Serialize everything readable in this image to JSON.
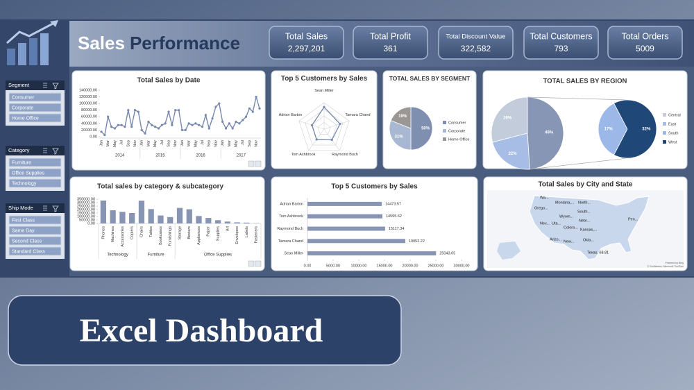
{
  "header": {
    "title_start": "Sales",
    "title_end": "Performance"
  },
  "kpis": [
    {
      "label": "Total Sales",
      "value": "2,297,201"
    },
    {
      "label": "Total Profit",
      "value": "361"
    },
    {
      "label": "Total Discount Value",
      "value": "322,582"
    },
    {
      "label": "Total Customers",
      "value": "793"
    },
    {
      "label": "Total Orders",
      "value": "5009"
    }
  ],
  "slicers": [
    {
      "title": "Segment",
      "items": [
        "Consumer",
        "Corporate",
        "Home Office"
      ]
    },
    {
      "title": "Category",
      "items": [
        "Furniture",
        "Office Supplies",
        "Technology"
      ]
    },
    {
      "title": "Ship Mode",
      "items": [
        "First Class",
        "Same Day",
        "Second Class",
        "Standard Class"
      ]
    }
  ],
  "chart_data": [
    {
      "type": "line",
      "title": "Total Sales by Date",
      "categories": [
        "Jan",
        null,
        "Mar",
        null,
        "May",
        null,
        "Jul",
        null,
        "Sep",
        null,
        "Nov",
        null,
        "Jan",
        null,
        "Mar",
        null,
        "May",
        null,
        "Jul",
        null,
        "Sep",
        null,
        "Nov",
        null,
        "Jan",
        null,
        "Mar",
        null,
        "May",
        null,
        "Jul",
        null,
        "Sep",
        null,
        "Nov",
        null,
        "Jan",
        null,
        "Mar",
        null,
        "May",
        null,
        "Jul",
        null,
        "Sep",
        null,
        "Nov",
        null
      ],
      "groups": [
        "2014",
        "2015",
        "2016",
        "2017"
      ],
      "values": [
        15000,
        5000,
        60000,
        30000,
        25000,
        35000,
        35000,
        30000,
        80000,
        30000,
        80000,
        75000,
        20000,
        10000,
        45000,
        35000,
        30000,
        25000,
        35000,
        40000,
        75000,
        35000,
        80000,
        80000,
        20000,
        20000,
        40000,
        35000,
        40000,
        35000,
        30000,
        65000,
        25000,
        55000,
        90000,
        100000,
        45000,
        25000,
        40000,
        25000,
        45000,
        40000,
        50000,
        60000,
        85000,
        75000,
        120000,
        85000
      ],
      "color": "#7688ad",
      "ylim": [
        0,
        140000
      ],
      "yticks": [
        {
          "value": 0,
          "label": "0.00"
        },
        {
          "value": 20000,
          "label": "20000.00"
        },
        {
          "value": 40000,
          "label": "40000.00"
        },
        {
          "value": 60000,
          "label": "60000.00"
        },
        {
          "value": 80000,
          "label": "80000.00"
        },
        {
          "value": 100000,
          "label": "100000.00"
        },
        {
          "value": 120000,
          "label": "120000.00"
        },
        {
          "value": 140000,
          "label": "140000.00"
        }
      ]
    },
    {
      "type": "radar",
      "title": "Top 5 Customers by Sales",
      "categories": [
        "Sean Miller",
        "Tamara Chand",
        "Raymond Buch",
        "Tom Ashbrook",
        "Adrian Barton"
      ],
      "values": [
        25043.05,
        19052.22,
        15117.34,
        14595.62,
        14473.57
      ],
      "rlim": [
        0,
        30000
      ],
      "color": "#7688ad"
    },
    {
      "type": "pie",
      "title": "TOTAL SALES BY SEGMENT",
      "categories": [
        "Consumer",
        "Corporate",
        "Home Office"
      ],
      "values": [
        50,
        31,
        19
      ],
      "value_labels": [
        "50%",
        "31%",
        "19%"
      ],
      "colors": [
        "#7f8fb0",
        "#a9b8d2",
        "#9a9794"
      ],
      "legend": "right"
    },
    {
      "type": "pie_of_pie",
      "title": "TOTAL SALES BY REGION",
      "categories": [
        "Central",
        "East",
        "South",
        "West"
      ],
      "values": [
        29,
        22,
        17,
        32
      ],
      "value_labels": [
        "29%",
        "22%",
        "17%",
        "32%"
      ],
      "other": {
        "value": 49,
        "label": "49%"
      },
      "colors": [
        "#c3ccdb",
        "#a8bde6",
        "#9cb8e8",
        "#1f4778"
      ],
      "other_color": "#8796b4",
      "legend": "right"
    },
    {
      "type": "grouped_bar",
      "title": "Total sales by category & subcategory",
      "groups": [
        {
          "name": "Technology",
          "categories": [
            "Phones",
            "Machines",
            "Accessories",
            "Copiers"
          ],
          "values": [
            330000,
            190000,
            167000,
            150000
          ]
        },
        {
          "name": "Furniture",
          "categories": [
            "Chairs",
            "Tables",
            "Bookcases",
            "Furnishings"
          ],
          "values": [
            328000,
            207000,
            115000,
            92000
          ]
        },
        {
          "name": "Office Supplies",
          "categories": [
            "Storage",
            "Binders",
            "Appliances",
            "Paper",
            "Supplies",
            "Art",
            "Envelopes",
            "Labels",
            "Fasteners"
          ],
          "values": [
            224000,
            204000,
            107000,
            79000,
            47000,
            27000,
            16000,
            12000,
            3000
          ]
        }
      ],
      "color": "#8795b3",
      "ylim": [
        0,
        350000
      ],
      "yticks": [
        {
          "value": 0,
          "label": "0.00"
        },
        {
          "value": 50000,
          "label": "50000.00"
        },
        {
          "value": 100000,
          "label": "100000.00"
        },
        {
          "value": 150000,
          "label": "150000.00"
        },
        {
          "value": 200000,
          "label": "200000.00"
        },
        {
          "value": 250000,
          "label": "250000.00"
        },
        {
          "value": 300000,
          "label": "300000.00"
        },
        {
          "value": 350000,
          "label": "350000.00"
        }
      ]
    },
    {
      "type": "hbar",
      "title": "Top 5 Customers by Sales",
      "categories": [
        "Adrian Barton",
        "Tom Ashbrook",
        "Raymond Buch",
        "Tamara Chand",
        "Sean Miller"
      ],
      "values": [
        14473.57,
        14595.62,
        15117.34,
        19052.22,
        25043.05
      ],
      "color": "#8795b3",
      "xlim": [
        0,
        30000
      ],
      "xticks": [
        {
          "value": 0,
          "label": "0.00"
        },
        {
          "value": 5000,
          "label": "5000.00"
        },
        {
          "value": 10000,
          "label": "10000.00"
        },
        {
          "value": 15000,
          "label": "15000.00"
        },
        {
          "value": 20000,
          "label": "20000.00"
        },
        {
          "value": 25000,
          "label": "25000.00"
        },
        {
          "value": 30000,
          "label": "30000.00"
        }
      ]
    },
    {
      "type": "map",
      "title": "Total Sales by City and State",
      "labels": [
        "Wa...",
        "Montana,...",
        "North...",
        "Orego...",
        "South...",
        "Wyom...",
        "Nebr...",
        "Nev...",
        "Uta...",
        "Colora...",
        "Kansas,...",
        "Arizo...",
        "New...",
        "Okla...",
        "Texas, 68.81",
        "Pen..."
      ],
      "attribution": [
        "Powered by Bing",
        "© GeoNames, Microsoft, TomTom"
      ]
    }
  ],
  "banner": {
    "title": "Excel Dashboard"
  }
}
